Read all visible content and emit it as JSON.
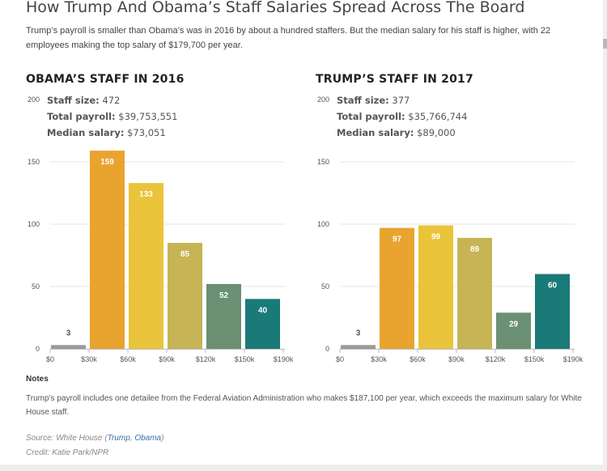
{
  "headline": "How Trump And Obama’s Staff Salaries Spread Across The Board",
  "dek": "Trump’s payroll is smaller than Obama’s was in 2016 by about a hundred staffers. But the median salary for his staff is higher, with 22 employees making the top salary of $179,700 per year.",
  "panels": [
    {
      "title": "OBAMA’S STAFF IN 2016",
      "stats": [
        {
          "label": "Staff size:",
          "value": "472"
        },
        {
          "label": "Total payroll:",
          "value": "$39,753,551"
        },
        {
          "label": "Median salary:",
          "value": "$73,051"
        }
      ]
    },
    {
      "title": "TRUMP’S STAFF IN 2017",
      "stats": [
        {
          "label": "Staff size:",
          "value": "377"
        },
        {
          "label": "Total payroll:",
          "value": "$35,766,744"
        },
        {
          "label": "Median salary:",
          "value": "$89,000"
        }
      ]
    }
  ],
  "colors": [
    "#999999",
    "#e8a42f",
    "#eac43a",
    "#c6b455",
    "#6b9073",
    "#1a7a78"
  ],
  "chart_data": [
    {
      "type": "bar",
      "title": "OBAMA’S STAFF IN 2016",
      "xticks": [
        "$0",
        "$30k",
        "$60k",
        "$90k",
        "$120k",
        "$150k",
        "$190k"
      ],
      "yticks": [
        0,
        50,
        100,
        150,
        200
      ],
      "ylim": [
        0,
        200
      ],
      "values": [
        3,
        159,
        133,
        85,
        52,
        40
      ],
      "xlabel": "",
      "ylabel": "",
      "grid": true
    },
    {
      "type": "bar",
      "title": "TRUMP’S STAFF IN 2017",
      "xticks": [
        "$0",
        "$30k",
        "$60k",
        "$90k",
        "$120k",
        "$150k",
        "$190k"
      ],
      "yticks": [
        0,
        50,
        100,
        150,
        200
      ],
      "ylim": [
        0,
        200
      ],
      "values": [
        3,
        97,
        99,
        89,
        29,
        60
      ],
      "xlabel": "",
      "ylabel": "",
      "grid": true
    }
  ],
  "notes": {
    "title": "Notes",
    "text": "Trump’s payroll includes one detailee from the Federal Aviation Administration who makes $187,100 per year, which exceeds the maximum salary for White House staff."
  },
  "source": {
    "prefix": "Source: White House (",
    "link1": "Trump",
    "sep": ", ",
    "link2": "Obama",
    "suffix": ")"
  },
  "credit": "Credit: Katie Park/NPR"
}
